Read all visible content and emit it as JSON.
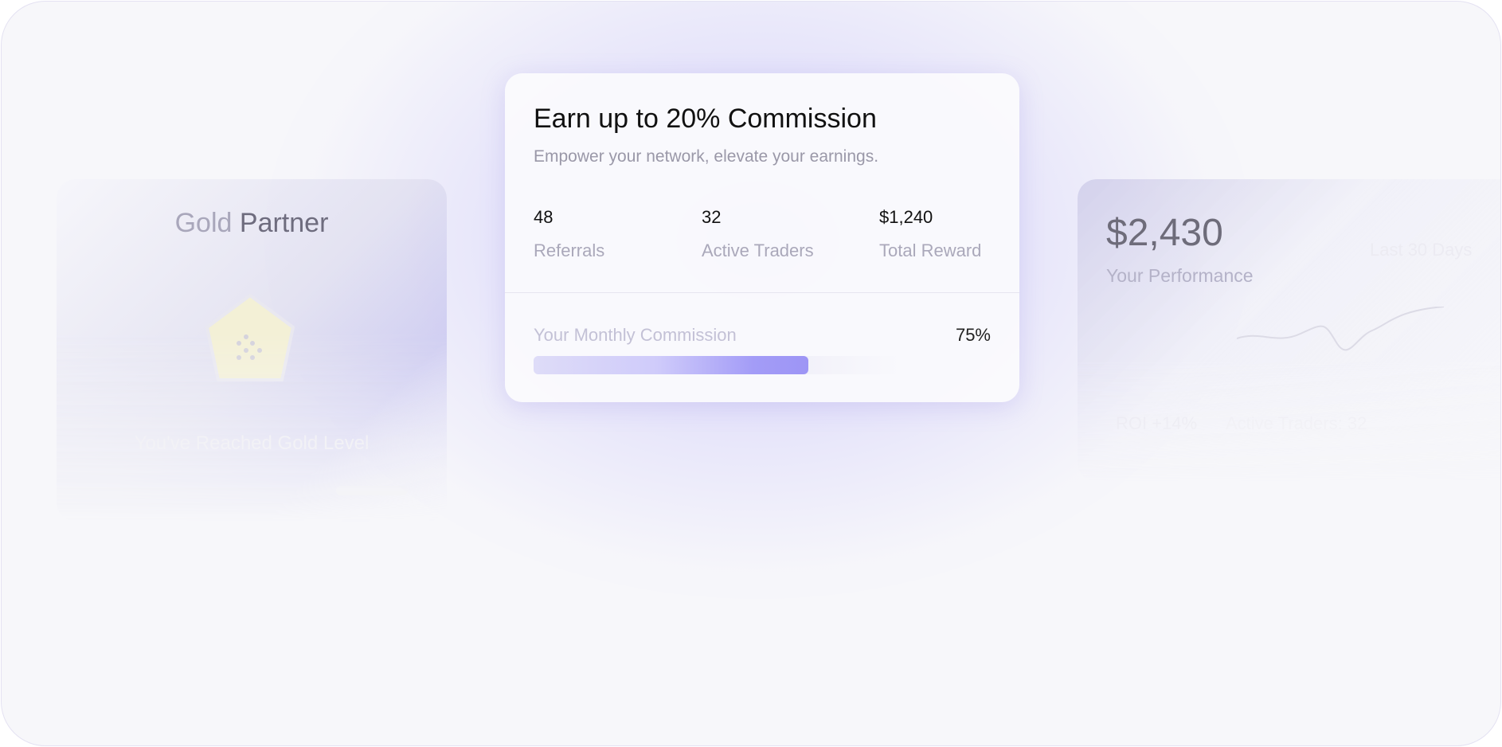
{
  "gold_card": {
    "title_part1": "Gold",
    "title_part2": "Partner",
    "badge_icon": "gold-pentagon-badge-icon",
    "level_text": "You've Reached Gold Level"
  },
  "commission_card": {
    "title": "Earn up to 20% Commission",
    "subtitle": "Empower your network, elevate your earnings.",
    "stats": [
      {
        "value": "48",
        "label": "Referrals"
      },
      {
        "value": "32",
        "label": "Active Traders"
      },
      {
        "value": "$1,240",
        "label": "Total Reward"
      }
    ],
    "monthly_label": "Your Monthly Commission",
    "monthly_percent_text": "75%",
    "progress_percent": 75,
    "accent": "#9d95f5"
  },
  "performance_card": {
    "amount": "$2,430",
    "label": "Your Performance",
    "period": "Last 30 Days",
    "roi": "ROI +14%",
    "active_traders": "Active Traders: 32"
  }
}
